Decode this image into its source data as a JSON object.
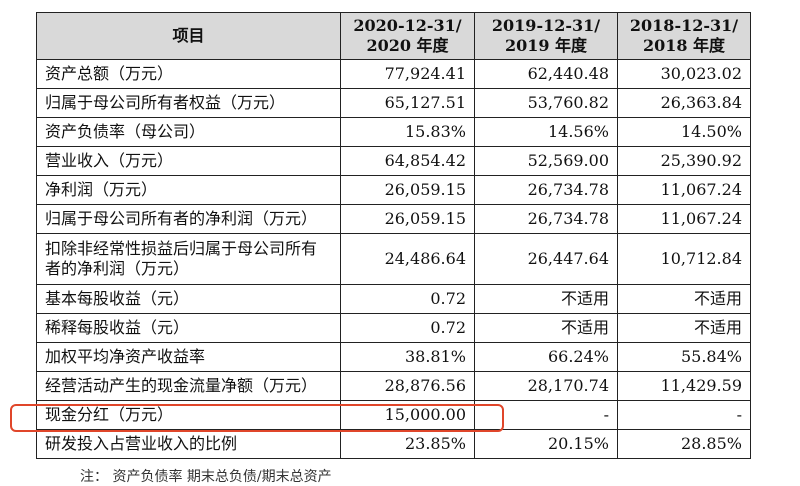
{
  "table": {
    "headers": [
      "项目",
      "2020-12-31/\n2020 年度",
      "2019-12-31/\n2019 年度",
      "2018-12-31/\n2018 年度"
    ],
    "rows": [
      {
        "label": "资产总额（万元）",
        "values": [
          "77,924.41",
          "62,440.48",
          "30,023.02"
        ]
      },
      {
        "label": "归属于母公司所有者权益（万元）",
        "values": [
          "65,127.51",
          "53,760.82",
          "26,363.84"
        ]
      },
      {
        "label": "资产负债率（母公司）",
        "values": [
          "15.83%",
          "14.56%",
          "14.50%"
        ]
      },
      {
        "label": "营业收入（万元）",
        "values": [
          "64,854.42",
          "52,569.00",
          "25,390.92"
        ]
      },
      {
        "label": "净利润（万元）",
        "values": [
          "26,059.15",
          "26,734.78",
          "11,067.24"
        ]
      },
      {
        "label": "归属于母公司所有者的净利润（万元）",
        "values": [
          "26,059.15",
          "26,734.78",
          "11,067.24"
        ]
      },
      {
        "label": "扣除非经常性损益后归属于母公司所有者的净利润（万元）",
        "values": [
          "24,486.64",
          "26,447.64",
          "10,712.84"
        ]
      },
      {
        "label": "基本每股收益（元）",
        "values": [
          "0.72",
          "不适用",
          "不适用"
        ]
      },
      {
        "label": "稀释每股收益（元）",
        "values": [
          "0.72",
          "不适用",
          "不适用"
        ]
      },
      {
        "label": "加权平均净资产收益率",
        "values": [
          "38.81%",
          "66.24%",
          "55.84%"
        ]
      },
      {
        "label": "经营活动产生的现金流量净额（万元）",
        "values": [
          "28,876.56",
          "28,170.74",
          "11,429.59"
        ]
      },
      {
        "label": "现金分红（万元）",
        "values": [
          "15,000.00",
          "-",
          "-"
        ]
      },
      {
        "label": "研发投入占营业收入的比例",
        "values": [
          "23.85%",
          "20.15%",
          "28.85%"
        ]
      }
    ]
  },
  "highlight_color": "#e0462a",
  "footnote": "注：    资产负债率 期末总负债/期末总资产"
}
